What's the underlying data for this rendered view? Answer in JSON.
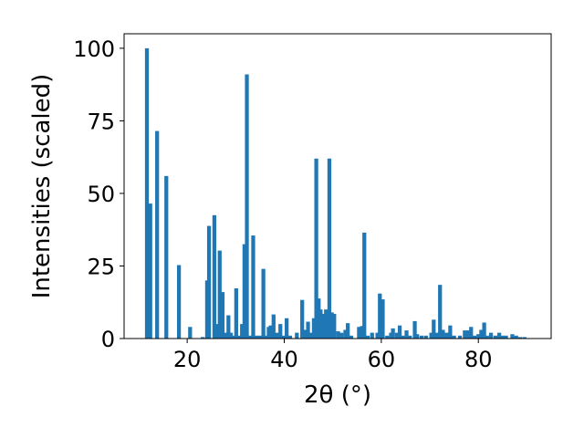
{
  "chart_data": {
    "type": "bar",
    "xlabel": "2θ (°)",
    "ylabel": "Intensities (scaled)",
    "xlim": [
      7,
      95
    ],
    "ylim": [
      0,
      105
    ],
    "x_ticks": [
      20,
      40,
      60,
      80
    ],
    "y_ticks": [
      0,
      25,
      50,
      75,
      100
    ],
    "bar_width": 0.8,
    "bar_color": "#1f77b4",
    "bars": [
      {
        "x": 11.7,
        "y": 100
      },
      {
        "x": 12.4,
        "y": 46.5
      },
      {
        "x": 13.8,
        "y": 71.5
      },
      {
        "x": 15.7,
        "y": 56
      },
      {
        "x": 18.3,
        "y": 25.3
      },
      {
        "x": 20.6,
        "y": 4
      },
      {
        "x": 23.2,
        "y": 0.5
      },
      {
        "x": 24.1,
        "y": 20
      },
      {
        "x": 24.5,
        "y": 38.8
      },
      {
        "x": 25.6,
        "y": 42.5
      },
      {
        "x": 26.1,
        "y": 5
      },
      {
        "x": 26.7,
        "y": 30.3
      },
      {
        "x": 27.3,
        "y": 16
      },
      {
        "x": 27.8,
        "y": 2
      },
      {
        "x": 28.5,
        "y": 8
      },
      {
        "x": 29.0,
        "y": 2
      },
      {
        "x": 29.4,
        "y": 1
      },
      {
        "x": 30.1,
        "y": 17.3
      },
      {
        "x": 30.8,
        "y": 1
      },
      {
        "x": 31.3,
        "y": 5
      },
      {
        "x": 31.8,
        "y": 32.5
      },
      {
        "x": 32.3,
        "y": 91
      },
      {
        "x": 33.0,
        "y": 1
      },
      {
        "x": 33.6,
        "y": 35.5
      },
      {
        "x": 34.2,
        "y": 1
      },
      {
        "x": 34.9,
        "y": 1
      },
      {
        "x": 35.7,
        "y": 24
      },
      {
        "x": 36.2,
        "y": 1
      },
      {
        "x": 36.8,
        "y": 4
      },
      {
        "x": 37.2,
        "y": 4.5
      },
      {
        "x": 37.8,
        "y": 8.3
      },
      {
        "x": 38.5,
        "y": 2
      },
      {
        "x": 39.2,
        "y": 5
      },
      {
        "x": 39.8,
        "y": 1
      },
      {
        "x": 40.5,
        "y": 7
      },
      {
        "x": 41.2,
        "y": 1
      },
      {
        "x": 42.6,
        "y": 2
      },
      {
        "x": 43.7,
        "y": 13.3
      },
      {
        "x": 44.4,
        "y": 3
      },
      {
        "x": 44.9,
        "y": 5.8
      },
      {
        "x": 45.4,
        "y": 2
      },
      {
        "x": 46.1,
        "y": 7
      },
      {
        "x": 46.6,
        "y": 62
      },
      {
        "x": 47.1,
        "y": 13.8
      },
      {
        "x": 47.5,
        "y": 10
      },
      {
        "x": 48.1,
        "y": 8.5
      },
      {
        "x": 48.6,
        "y": 10
      },
      {
        "x": 49.3,
        "y": 62
      },
      {
        "x": 49.8,
        "y": 9
      },
      {
        "x": 50.3,
        "y": 8.5
      },
      {
        "x": 51.1,
        "y": 2.5
      },
      {
        "x": 51.8,
        "y": 2
      },
      {
        "x": 52.6,
        "y": 3
      },
      {
        "x": 53.1,
        "y": 5.3
      },
      {
        "x": 53.8,
        "y": 1
      },
      {
        "x": 55.4,
        "y": 4
      },
      {
        "x": 56.0,
        "y": 4.3
      },
      {
        "x": 56.5,
        "y": 36.5
      },
      {
        "x": 57.2,
        "y": 1
      },
      {
        "x": 58.1,
        "y": 2
      },
      {
        "x": 59.2,
        "y": 2
      },
      {
        "x": 59.7,
        "y": 15.5
      },
      {
        "x": 60.3,
        "y": 13.5
      },
      {
        "x": 61.2,
        "y": 1
      },
      {
        "x": 62.0,
        "y": 2
      },
      {
        "x": 62.4,
        "y": 3.5
      },
      {
        "x": 63.2,
        "y": 2
      },
      {
        "x": 63.8,
        "y": 4.5
      },
      {
        "x": 64.4,
        "y": 1
      },
      {
        "x": 65.2,
        "y": 2.8
      },
      {
        "x": 65.9,
        "y": 1
      },
      {
        "x": 66.9,
        "y": 6
      },
      {
        "x": 67.4,
        "y": 1.5
      },
      {
        "x": 68.3,
        "y": 1
      },
      {
        "x": 69.2,
        "y": 1
      },
      {
        "x": 70.3,
        "y": 2
      },
      {
        "x": 70.8,
        "y": 6.5
      },
      {
        "x": 71.5,
        "y": 2
      },
      {
        "x": 72.1,
        "y": 18.5
      },
      {
        "x": 72.7,
        "y": 3
      },
      {
        "x": 73.5,
        "y": 2
      },
      {
        "x": 74.2,
        "y": 4.5
      },
      {
        "x": 75.0,
        "y": 1
      },
      {
        "x": 76.2,
        "y": 1
      },
      {
        "x": 77.2,
        "y": 2.8
      },
      {
        "x": 77.9,
        "y": 2.8
      },
      {
        "x": 78.5,
        "y": 4
      },
      {
        "x": 79.2,
        "y": 1
      },
      {
        "x": 80.0,
        "y": 1.5
      },
      {
        "x": 80.6,
        "y": 3
      },
      {
        "x": 81.2,
        "y": 5.5
      },
      {
        "x": 81.8,
        "y": 1
      },
      {
        "x": 82.6,
        "y": 2
      },
      {
        "x": 83.5,
        "y": 1
      },
      {
        "x": 84.3,
        "y": 2
      },
      {
        "x": 85.0,
        "y": 1
      },
      {
        "x": 85.7,
        "y": 1
      },
      {
        "x": 87.0,
        "y": 1.5
      },
      {
        "x": 87.8,
        "y": 1
      },
      {
        "x": 88.6,
        "y": 0.5
      },
      {
        "x": 89.5,
        "y": 0.5
      }
    ]
  }
}
